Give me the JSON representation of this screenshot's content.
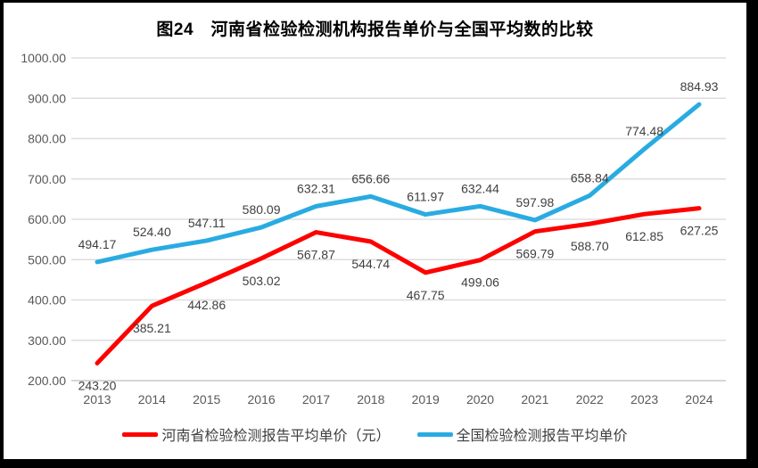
{
  "frame": {
    "border_color": "#000000",
    "background_color": "#ffffff"
  },
  "chart_data": {
    "type": "line",
    "title": "图24　河南省检验检测机构报告单价与全国平均数的比较",
    "categories": [
      "2013",
      "2014",
      "2015",
      "2016",
      "2017",
      "2018",
      "2019",
      "2020",
      "2021",
      "2022",
      "2023",
      "2024"
    ],
    "series": [
      {
        "name": "河南省检验检测报告平均单价（元）",
        "color": "#FE0000",
        "label_position": "below",
        "values": [
          243.2,
          385.21,
          442.86,
          503.02,
          567.87,
          544.74,
          467.75,
          499.06,
          569.79,
          588.7,
          612.85,
          627.25
        ]
      },
      {
        "name": "全国检验检测报告平均单价",
        "color": "#29ABE2",
        "label_position": "above",
        "values": [
          494.17,
          524.4,
          547.11,
          580.09,
          632.31,
          656.66,
          611.97,
          632.44,
          597.98,
          658.84,
          774.48,
          884.93
        ]
      }
    ],
    "ylim": [
      200,
      1000
    ],
    "y_ticks": [
      {
        "label": "1000.00",
        "value": 1000
      },
      {
        "label": "900.00",
        "value": 900
      },
      {
        "label": "800.00",
        "value": 800
      },
      {
        "label": "700.00",
        "value": 700
      },
      {
        "label": "600.00",
        "value": 600
      },
      {
        "label": "500.00",
        "value": 500
      },
      {
        "label": "400.00",
        "value": 400
      },
      {
        "label": "300.00",
        "value": 300
      },
      {
        "label": "200.00",
        "value": 200
      }
    ],
    "grid": true,
    "gridline_color": "#DDDDDD",
    "axis_line_color": "#C9C9C9",
    "tick_label_color": "#595959",
    "data_label_color": "#404040",
    "legend_position": "bottom",
    "value_format": "2-decimals"
  }
}
